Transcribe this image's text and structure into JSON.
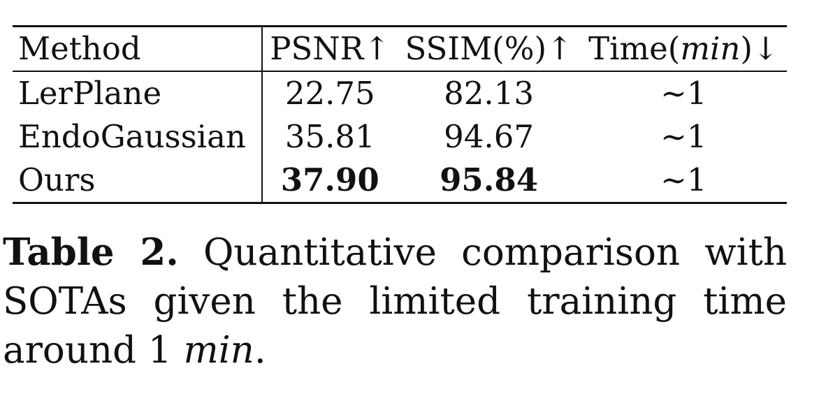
{
  "table": {
    "headers": {
      "method": "Method",
      "psnr": "PSNR↑",
      "ssim": "SSIM(%)↑",
      "time_prefix": "Time(",
      "time_unit": "min",
      "time_suffix": ")↓"
    },
    "rows": [
      {
        "method": "LerPlane",
        "psnr": "22.75",
        "ssim": "82.13",
        "time": "∼1"
      },
      {
        "method": "EndoGaussian",
        "psnr": "35.81",
        "ssim": "94.67",
        "time": "∼1"
      },
      {
        "method": "Ours",
        "psnr": "37.90",
        "ssim": "95.84",
        "time": "∼1"
      }
    ]
  },
  "caption": {
    "label": "Table 2.",
    "text": "Quantitative comparison with SOTAs given the limited training time around 1",
    "unit": "min",
    "end": "."
  }
}
